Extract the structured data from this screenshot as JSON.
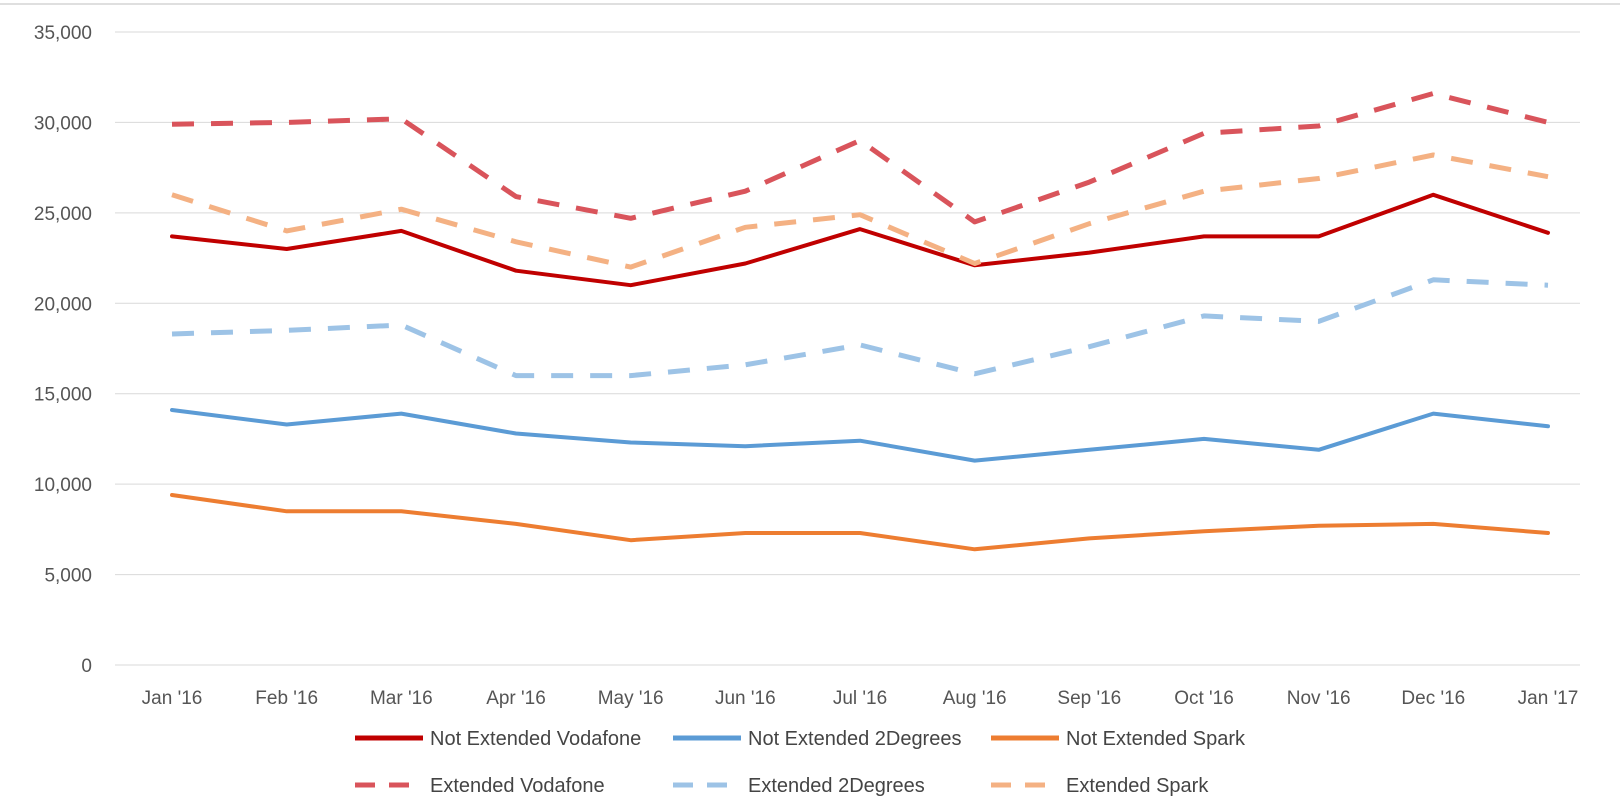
{
  "chart_data": {
    "type": "line",
    "title": "",
    "xlabel": "",
    "ylabel": "",
    "ylim": [
      0,
      35000
    ],
    "yticks": [
      0,
      5000,
      10000,
      15000,
      20000,
      25000,
      30000,
      35000
    ],
    "ytick_labels": [
      "0",
      "5,000",
      "10,000",
      "15,000",
      "20,000",
      "25,000",
      "30,000",
      "35,000"
    ],
    "grid": true,
    "legend_position": "bottom",
    "categories": [
      "Jan '16",
      "Feb '16",
      "Mar '16",
      "Apr '16",
      "May '16",
      "Jun '16",
      "Jul '16",
      "Aug '16",
      "Sep '16",
      "Oct '16",
      "Nov '16",
      "Dec '16",
      "Jan '17"
    ],
    "series": [
      {
        "name": "Not Extended Vodafone",
        "color": "#c00000",
        "style": "solid",
        "values": [
          23700,
          23000,
          24000,
          21800,
          21000,
          22200,
          24100,
          22100,
          22800,
          23700,
          23700,
          26000,
          23900
        ]
      },
      {
        "name": "Not Extended 2Degrees",
        "color": "#5b9bd5",
        "style": "solid",
        "values": [
          14100,
          13300,
          13900,
          12800,
          12300,
          12100,
          12400,
          11300,
          11900,
          12500,
          11900,
          13900,
          13200
        ]
      },
      {
        "name": "Not Extended Spark",
        "color": "#ed7d31",
        "style": "solid",
        "values": [
          9400,
          8500,
          8500,
          7800,
          6900,
          7300,
          7300,
          6400,
          7000,
          7400,
          7700,
          7800,
          7300
        ]
      },
      {
        "name": "Extended Vodafone",
        "color": "#d9545b",
        "style": "dashed",
        "values": [
          29900,
          30000,
          30200,
          25900,
          24700,
          26200,
          29000,
          24500,
          26700,
          29400,
          29800,
          31600,
          30000
        ]
      },
      {
        "name": "Extended 2Degrees",
        "color": "#9dc3e6",
        "style": "dashed",
        "values": [
          18300,
          18500,
          18800,
          16000,
          16000,
          16600,
          17700,
          16100,
          17600,
          19300,
          19000,
          21300,
          21000
        ]
      },
      {
        "name": "Extended Spark",
        "color": "#f4b183",
        "style": "dashed",
        "values": [
          26000,
          24000,
          25200,
          23400,
          22000,
          24200,
          24900,
          22200,
          24400,
          26200,
          26900,
          28200,
          27000
        ]
      }
    ]
  }
}
